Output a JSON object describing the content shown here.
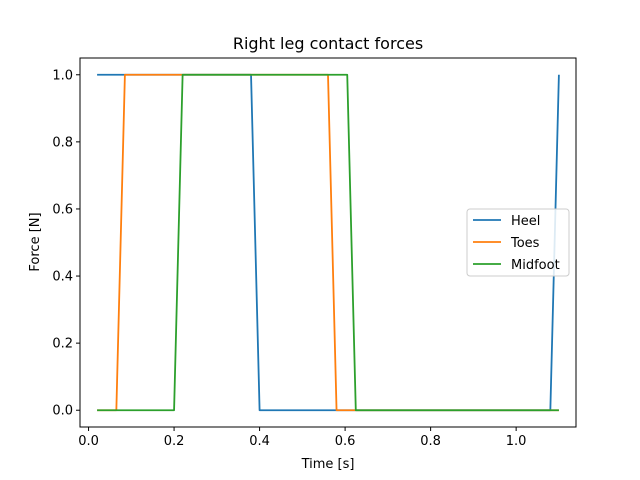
{
  "chart_data": {
    "type": "line",
    "title": "Right leg contact forces",
    "xlabel": "Time [s]",
    "ylabel": "Force [N]",
    "xlim": [
      -0.02,
      1.14
    ],
    "ylim": [
      -0.05,
      1.05
    ],
    "xticks": [
      0.0,
      0.2,
      0.4,
      0.6,
      0.8,
      1.0
    ],
    "xtick_labels": [
      "0.0",
      "0.2",
      "0.4",
      "0.6",
      "0.8",
      "1.0"
    ],
    "yticks": [
      0.0,
      0.2,
      0.4,
      0.6,
      0.8,
      1.0
    ],
    "ytick_labels": [
      "0.0",
      "0.2",
      "0.4",
      "0.6",
      "0.8",
      "1.0"
    ],
    "grid": false,
    "legend": "center-right",
    "series": [
      {
        "name": "Heel",
        "color": "#1f77b4",
        "x": [
          0.02,
          0.38,
          0.4,
          1.08,
          1.1
        ],
        "y": [
          1.0,
          1.0,
          0.0,
          0.0,
          1.0
        ]
      },
      {
        "name": "Toes",
        "color": "#ff7f0e",
        "x": [
          0.02,
          0.065,
          0.085,
          0.56,
          0.58,
          1.1
        ],
        "y": [
          0.0,
          0.0,
          1.0,
          1.0,
          0.0,
          0.0
        ]
      },
      {
        "name": "Midfoot",
        "color": "#2ca02c",
        "x": [
          0.02,
          0.2,
          0.22,
          0.605,
          0.625,
          1.1
        ],
        "y": [
          0.0,
          0.0,
          1.0,
          1.0,
          0.0,
          0.0
        ]
      }
    ]
  }
}
